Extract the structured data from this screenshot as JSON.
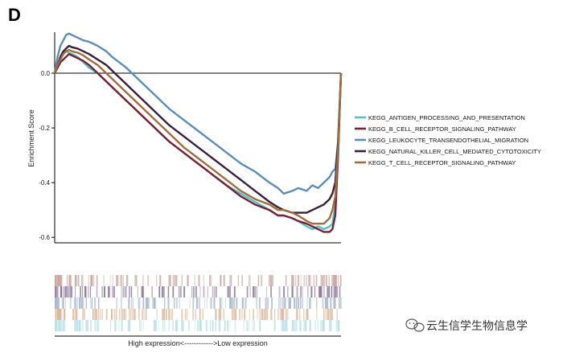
{
  "panel_label": "D",
  "watermark": {
    "text": "云生信学生物信息学",
    "icon": "wechat-icon"
  },
  "chart_data": {
    "type": "line",
    "title": "",
    "ylabel": "Enrichment Score",
    "xlabel": "High expression<------------>Low expression",
    "ylim": [
      -0.6,
      0.15
    ],
    "yticks": [
      0.0,
      -0.2,
      -0.4,
      -0.6
    ],
    "ytick_labels": [
      "0.0",
      "-0.2",
      "-0.4",
      "-0.6"
    ],
    "xlim": [
      0,
      1
    ],
    "legend_position": "right",
    "x": [
      0,
      0.01,
      0.02,
      0.03,
      0.04,
      0.05,
      0.06,
      0.08,
      0.1,
      0.12,
      0.15,
      0.18,
      0.2,
      0.25,
      0.3,
      0.35,
      0.4,
      0.45,
      0.5,
      0.55,
      0.6,
      0.65,
      0.7,
      0.75,
      0.78,
      0.8,
      0.83,
      0.85,
      0.88,
      0.9,
      0.92,
      0.94,
      0.96,
      0.97,
      0.98,
      0.99,
      1.0
    ],
    "series": [
      {
        "name": "KEGG_ANTIGEN_PROCESSING_AND_PRESENTATION",
        "color": "#4fc3c8",
        "values": [
          0.0,
          0.02,
          0.05,
          0.07,
          0.08,
          0.075,
          0.07,
          0.06,
          0.04,
          0.02,
          0.0,
          -0.03,
          -0.05,
          -0.1,
          -0.15,
          -0.2,
          -0.25,
          -0.29,
          -0.33,
          -0.37,
          -0.41,
          -0.44,
          -0.47,
          -0.5,
          -0.52,
          -0.52,
          -0.53,
          -0.54,
          -0.56,
          -0.57,
          -0.56,
          -0.57,
          -0.56,
          -0.55,
          -0.48,
          -0.3,
          0.0
        ]
      },
      {
        "name": "KEGG_B_CELL_RECEPTOR_SIGNALING_PATHWAY",
        "color": "#7a1f35",
        "values": [
          0.0,
          0.02,
          0.04,
          0.05,
          0.06,
          0.07,
          0.065,
          0.055,
          0.045,
          0.03,
          0.0,
          -0.03,
          -0.05,
          -0.1,
          -0.15,
          -0.2,
          -0.25,
          -0.29,
          -0.33,
          -0.37,
          -0.41,
          -0.45,
          -0.48,
          -0.5,
          -0.52,
          -0.52,
          -0.53,
          -0.54,
          -0.55,
          -0.56,
          -0.57,
          -0.58,
          -0.58,
          -0.57,
          -0.52,
          -0.3,
          0.0
        ]
      },
      {
        "name": "KEGG_LEUKOCYTE_TRANSENDOTHELIAL_MIGRATION",
        "color": "#5b8db8",
        "values": [
          0.0,
          0.06,
          0.1,
          0.12,
          0.14,
          0.145,
          0.14,
          0.13,
          0.12,
          0.115,
          0.1,
          0.08,
          0.06,
          0.02,
          -0.03,
          -0.08,
          -0.13,
          -0.17,
          -0.21,
          -0.25,
          -0.29,
          -0.33,
          -0.36,
          -0.4,
          -0.42,
          -0.44,
          -0.43,
          -0.42,
          -0.43,
          -0.41,
          -0.42,
          -0.4,
          -0.38,
          -0.36,
          -0.35,
          -0.25,
          0.0
        ]
      },
      {
        "name": "KEGG_NATURAL_KILLER_CELL_MEDIATED_CYTOTOXICITY",
        "color": "#3a1f3c",
        "values": [
          0.0,
          0.03,
          0.06,
          0.08,
          0.09,
          0.1,
          0.095,
          0.09,
          0.08,
          0.07,
          0.05,
          0.03,
          0.01,
          -0.04,
          -0.09,
          -0.14,
          -0.19,
          -0.23,
          -0.27,
          -0.31,
          -0.35,
          -0.39,
          -0.43,
          -0.47,
          -0.49,
          -0.5,
          -0.51,
          -0.51,
          -0.51,
          -0.5,
          -0.49,
          -0.48,
          -0.46,
          -0.44,
          -0.4,
          -0.25,
          0.0
        ]
      },
      {
        "name": "KEGG_T_CELL_RECEPTOR_SIGNALING_PATHWAY",
        "color": "#a06e3c",
        "values": [
          0.0,
          0.03,
          0.05,
          0.07,
          0.08,
          0.085,
          0.08,
          0.075,
          0.065,
          0.05,
          0.03,
          0.0,
          -0.02,
          -0.07,
          -0.12,
          -0.17,
          -0.22,
          -0.27,
          -0.31,
          -0.35,
          -0.39,
          -0.43,
          -0.46,
          -0.48,
          -0.5,
          -0.5,
          -0.51,
          -0.52,
          -0.54,
          -0.55,
          -0.55,
          -0.55,
          -0.53,
          -0.5,
          -0.45,
          -0.28,
          0.0
        ]
      }
    ]
  }
}
